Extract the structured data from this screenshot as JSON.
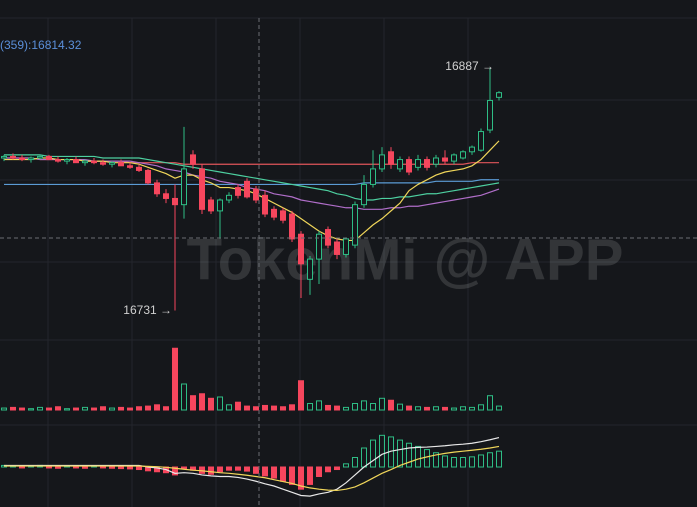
{
  "chart_data": [
    {
      "type": "candlestick",
      "legend_text": "(359):16814.32",
      "high_annotation": "16887 →",
      "low_annotation": "16731 →",
      "watermark": "TokenMi @ APP",
      "up_color": "#2ebd85",
      "down_color": "#f6465d",
      "ylim": [
        16712,
        16919
      ],
      "open": [
        16829,
        16830,
        16829,
        16828,
        16829,
        16830,
        16828,
        16827,
        16828,
        16826,
        16827,
        16826,
        16825,
        16826,
        16824,
        16823,
        16821,
        16813,
        16806,
        16803,
        16799,
        16831,
        16822,
        16802,
        16795,
        16802,
        16810,
        16814,
        16809,
        16805,
        16796,
        16795,
        16793,
        16780,
        16751,
        16764,
        16783,
        16775,
        16767,
        16773,
        16799,
        16812,
        16822,
        16833,
        16822,
        16828,
        16823,
        16828,
        16825,
        16829,
        16827,
        16829,
        16833,
        16834,
        16847,
        16868
      ],
      "high": [
        16831,
        16832,
        16831,
        16830,
        16831,
        16831,
        16830,
        16829,
        16830,
        16828,
        16829,
        16828,
        16827,
        16828,
        16826,
        16825,
        16822,
        16815,
        16809,
        16812,
        16849,
        16834,
        16825,
        16804,
        16803,
        16807,
        16812,
        16816,
        16811,
        16808,
        16798,
        16797,
        16795,
        16782,
        16766,
        16782,
        16785,
        16777,
        16778,
        16801,
        16818,
        16834,
        16836,
        16836,
        16830,
        16830,
        16831,
        16830,
        16831,
        16834,
        16832,
        16834,
        16837,
        16848,
        16887,
        16872
      ],
      "low": [
        16827,
        16828,
        16827,
        16826,
        16828,
        16828,
        16826,
        16825,
        16826,
        16824,
        16825,
        16824,
        16823,
        16824,
        16822,
        16820,
        16812,
        16804,
        16800,
        16731,
        16790,
        16822,
        16793,
        16793,
        16777,
        16800,
        16803,
        16803,
        16800,
        16791,
        16789,
        16787,
        16775,
        16739,
        16741,
        16748,
        16771,
        16764,
        16765,
        16771,
        16797,
        16810,
        16820,
        16822,
        16820,
        16818,
        16821,
        16821,
        16823,
        16825,
        16825,
        16828,
        16831,
        16833,
        16845,
        16866
      ],
      "close": [
        16830,
        16829,
        16828,
        16829,
        16830,
        16828,
        16827,
        16828,
        16826,
        16827,
        16826,
        16825,
        16826,
        16824,
        16823,
        16821,
        16813,
        16806,
        16803,
        16799,
        16822,
        16825,
        16796,
        16795,
        16802,
        16805,
        16805,
        16804,
        16802,
        16793,
        16791,
        16789,
        16777,
        16761,
        16764,
        16780,
        16773,
        16767,
        16777,
        16799,
        16812,
        16822,
        16831,
        16825,
        16828,
        16820,
        16828,
        16823,
        16829,
        16827,
        16831,
        16833,
        16836,
        16846,
        16866,
        16871
      ],
      "lines": [
        {
          "color": "#e0555a",
          "values": [
            16829,
            16829,
            16829,
            16829,
            16828,
            16828,
            16828,
            16828,
            16828,
            16827,
            16827,
            16827,
            16827,
            16827,
            16826,
            16826,
            16826,
            16826,
            16826,
            16826,
            16825,
            16825,
            16825,
            16825,
            16825,
            16825,
            16825,
            16825,
            16825,
            16825,
            16825,
            16825,
            16825,
            16825,
            16825,
            16825,
            16825,
            16825,
            16825,
            16825,
            16825,
            16825,
            16825,
            16825,
            16825,
            16825,
            16825,
            16825,
            16825,
            16825,
            16825,
            16825,
            16826,
            16826,
            16826,
            16826
          ]
        },
        {
          "color": "#5b9bd5",
          "values": [
            16812,
            16812,
            16812,
            16812,
            16812,
            16812,
            16812,
            16812,
            16812,
            16812,
            16812,
            16812,
            16812,
            16812,
            16812,
            16812,
            16812,
            16812,
            16812,
            16812,
            16812,
            16812,
            16812,
            16812,
            16812,
            16812,
            16812,
            16812,
            16812,
            16812,
            16812,
            16812,
            16812,
            16812,
            16812,
            16812,
            16812,
            16812,
            16812,
            16812,
            16813,
            16813,
            16813,
            16813,
            16813,
            16813,
            16813,
            16813,
            16814,
            16814,
            16814,
            16814,
            16814,
            16815,
            16815,
            16815
          ]
        },
        {
          "color": "#4dd0a0",
          "values": [
            16831,
            16831,
            16831,
            16831,
            16831,
            16830,
            16830,
            16830,
            16830,
            16830,
            16830,
            16829,
            16829,
            16829,
            16829,
            16829,
            16828,
            16827,
            16826,
            16825,
            16824,
            16823,
            16822,
            16821,
            16820,
            16819,
            16818,
            16817,
            16816,
            16815,
            16814,
            16813,
            16812,
            16811,
            16810,
            16809,
            16808,
            16806,
            16805,
            16803,
            16802,
            16802,
            16803,
            16803,
            16804,
            16804,
            16805,
            16806,
            16806,
            16807,
            16808,
            16809,
            16810,
            16811,
            16812,
            16813
          ]
        },
        {
          "color": "#b06ec9",
          "values": [
            16829,
            16829,
            16829,
            16829,
            16828,
            16828,
            16828,
            16828,
            16828,
            16828,
            16827,
            16827,
            16827,
            16827,
            16827,
            16826,
            16825,
            16824,
            16822,
            16821,
            16820,
            16818,
            16817,
            16816,
            16814,
            16813,
            16812,
            16810,
            16809,
            16808,
            16806,
            16805,
            16804,
            16802,
            16801,
            16800,
            16799,
            16798,
            16797,
            16797,
            16796,
            16796,
            16796,
            16797,
            16797,
            16798,
            16798,
            16799,
            16800,
            16801,
            16802,
            16803,
            16804,
            16805,
            16807,
            16809
          ]
        },
        {
          "color": "#f0d65a",
          "values": [
            16828,
            16828,
            16828,
            16828,
            16829,
            16829,
            16828,
            16828,
            16828,
            16827,
            16827,
            16827,
            16826,
            16826,
            16826,
            16825,
            16823,
            16821,
            16819,
            16816,
            16818,
            16818,
            16815,
            16813,
            16810,
            16810,
            16809,
            16808,
            16806,
            16803,
            16800,
            16797,
            16794,
            16790,
            16786,
            16782,
            16779,
            16777,
            16776,
            16776,
            16781,
            16786,
            16790,
            16795,
            16800,
            16808,
            16812,
            16815,
            16818,
            16820,
            16821,
            16822,
            16824,
            16828,
            16834,
            16840
          ]
        }
      ]
    },
    {
      "type": "bar",
      "ylim": [
        0,
        100
      ],
      "values": [
        3,
        4,
        3,
        2,
        4,
        3,
        5,
        2,
        3,
        4,
        3,
        5,
        3,
        4,
        3,
        5,
        6,
        8,
        5,
        95,
        40,
        22,
        25,
        18,
        20,
        8,
        12,
        6,
        5,
        7,
        6,
        5,
        8,
        45,
        10,
        14,
        7,
        6,
        4,
        10,
        14,
        10,
        18,
        15,
        9,
        6,
        5,
        4,
        5,
        4,
        3,
        5,
        4,
        8,
        22,
        6
      ]
    },
    {
      "type": "macd",
      "ylim": [
        -12,
        12
      ],
      "up_color": "#2ebd85",
      "down_color": "#f6465d",
      "values": [
        0.5,
        0.3,
        -0.3,
        0.4,
        0.5,
        -0.3,
        -0.4,
        0.3,
        -0.3,
        -0.4,
        0.3,
        -0.3,
        -0.4,
        -0.5,
        -0.6,
        -0.8,
        -1.2,
        -1.5,
        -1.8,
        -2.5,
        -0.5,
        -1,
        -2,
        -2.3,
        -1.5,
        -1,
        -1,
        -1.3,
        -2,
        -2.8,
        -3.5,
        -4.5,
        -5.5,
        -7,
        -5.5,
        -3,
        -1.5,
        -0.8,
        1,
        3,
        6,
        8.5,
        10,
        9.5,
        8.5,
        7.5,
        6.5,
        5.5,
        4.5,
        3.5,
        3,
        3,
        3.2,
        3.8,
        4.5,
        5
      ],
      "lines": [
        {
          "color": "#e8e8e8",
          "values": [
            0.5,
            0.5,
            0.5,
            0.5,
            0.5,
            0.5,
            0.5,
            0.5,
            0.5,
            0.5,
            0.5,
            0.5,
            0.5,
            0.5,
            0.5,
            0.5,
            0,
            -0.3,
            -0.8,
            -2,
            -1.8,
            -2,
            -2.5,
            -2.8,
            -3,
            -3,
            -3.3,
            -3.8,
            -4.5,
            -5.3,
            -6,
            -7,
            -8,
            -9,
            -9.2,
            -8.5,
            -8,
            -7,
            -5,
            -2.5,
            0,
            2,
            4,
            5,
            5.5,
            6,
            6.2,
            6.3,
            6.5,
            6.7,
            7,
            7.2,
            7.5,
            8,
            8.6,
            9.3
          ]
        },
        {
          "color": "#f0d65a",
          "values": [
            0.3,
            0.3,
            0.3,
            0.3,
            0.3,
            0.3,
            0.3,
            0.3,
            0.3,
            0.3,
            0.3,
            0.3,
            0.3,
            0.3,
            0.3,
            0.3,
            0.2,
            0.1,
            -0.1,
            -0.4,
            -0.7,
            -1,
            -1.2,
            -1.5,
            -1.8,
            -2,
            -2.3,
            -2.6,
            -3,
            -3.4,
            -4,
            -4.6,
            -5.2,
            -6,
            -6.6,
            -7,
            -7.3,
            -7.4,
            -7,
            -6.3,
            -5,
            -3.5,
            -2,
            -0.8,
            0.5,
            1.5,
            2.5,
            3.2,
            3.8,
            4.3,
            4.7,
            5,
            5.3,
            5.6,
            6,
            6.5
          ]
        }
      ]
    }
  ]
}
